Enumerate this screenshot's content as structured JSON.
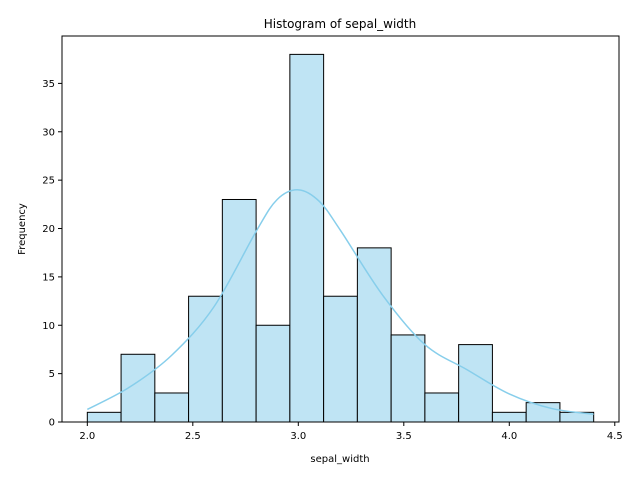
{
  "chart_data": {
    "type": "bar",
    "title": "Histogram of sepal_width",
    "xlabel": "sepal_width",
    "ylabel": "Frequency",
    "bin_edges": [
      2.0,
      2.16,
      2.32,
      2.48,
      2.64,
      2.8,
      2.96,
      3.12,
      3.28,
      3.44,
      3.6,
      3.76,
      3.92,
      4.08,
      4.24,
      4.4
    ],
    "values": [
      1,
      7,
      3,
      13,
      23,
      10,
      38,
      13,
      18,
      9,
      3,
      8,
      1,
      2,
      1
    ],
    "kde": {
      "x": [
        2.0,
        2.2,
        2.4,
        2.6,
        2.8,
        2.9,
        3.0,
        3.1,
        3.2,
        3.4,
        3.6,
        3.8,
        4.0,
        4.2,
        4.4
      ],
      "y": [
        1.3,
        3.6,
        6.9,
        11.9,
        19.7,
        23.0,
        24.0,
        22.8,
        19.8,
        13.1,
        8.0,
        5.4,
        2.9,
        1.4,
        0.8
      ]
    },
    "xticks": [
      "2.0",
      "2.5",
      "3.0",
      "3.5",
      "4.0",
      "4.5"
    ],
    "yticks": [
      "0",
      "5",
      "10",
      "15",
      "20",
      "25",
      "30",
      "35"
    ],
    "xlim": [
      1.88,
      4.52
    ],
    "ylim": [
      0,
      39.9
    ],
    "grid": false,
    "colors": {
      "bar_fill": "#bfe4f4",
      "bar_edge": "#000000",
      "kde_line": "#87ceeb"
    }
  }
}
